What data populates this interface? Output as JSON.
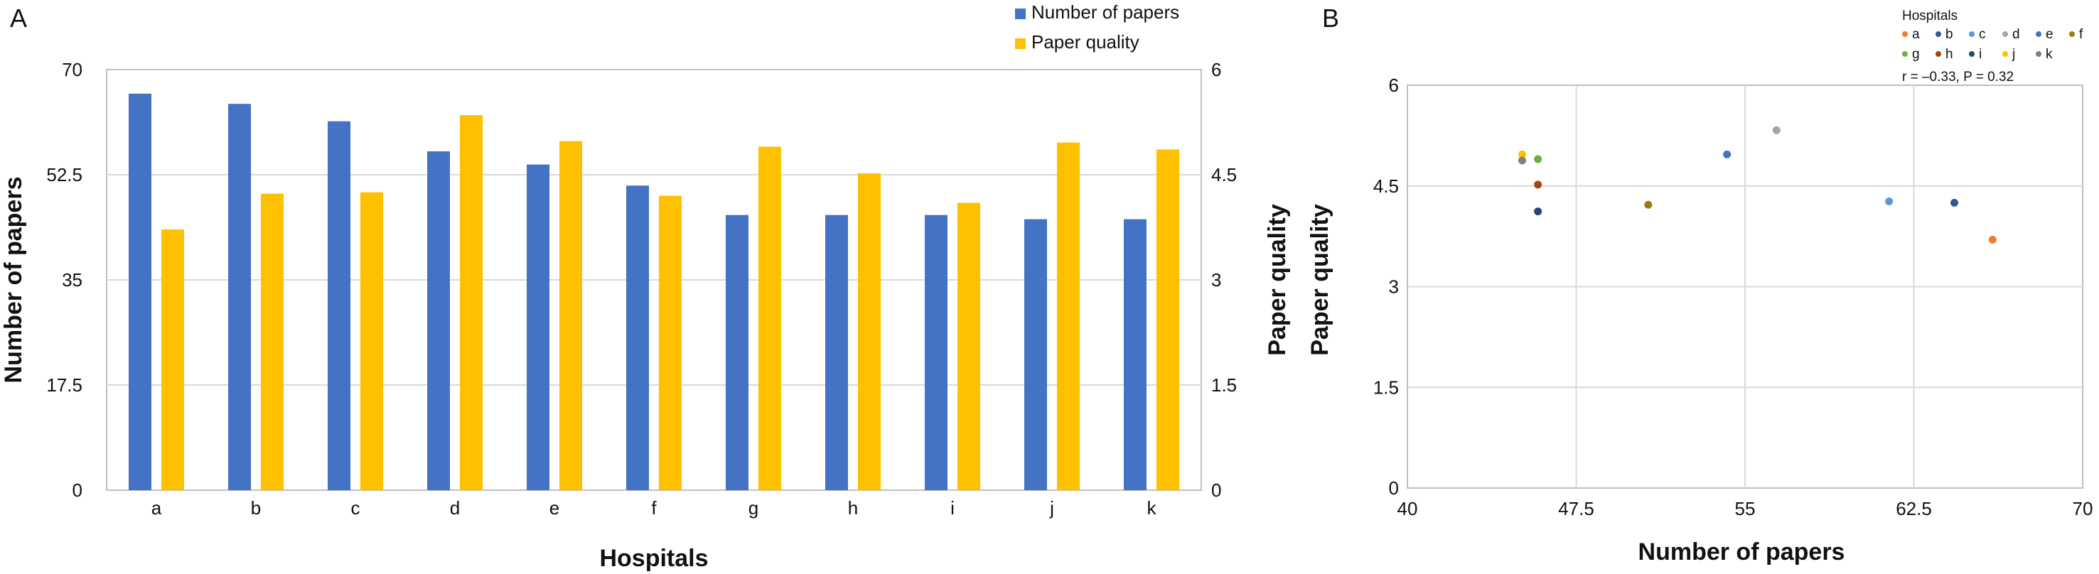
{
  "panels": [
    "A",
    "B"
  ],
  "chart_data": [
    {
      "type": "bar",
      "categories": [
        "a",
        "b",
        "c",
        "d",
        "e",
        "f",
        "g",
        "h",
        "i",
        "j",
        "k"
      ],
      "series": [
        {
          "name": "Number of papers",
          "axis": "left",
          "color": "#4472C4",
          "values": [
            66,
            64.3,
            61.4,
            56.4,
            54.2,
            50.7,
            45.8,
            45.8,
            45.8,
            45.1,
            45.1
          ]
        },
        {
          "name": "Paper quality",
          "axis": "right",
          "color": "#FFC000",
          "values": [
            3.72,
            4.23,
            4.25,
            5.35,
            4.98,
            4.2,
            4.9,
            4.52,
            4.1,
            4.96,
            4.86
          ]
        }
      ],
      "xlabel": "Hospitals",
      "ylabel": "Number of papers",
      "y2label": "Paper quality",
      "ylim": [
        0,
        70
      ],
      "y2lim": [
        0,
        6
      ],
      "yticks": [
        "0",
        "17.5",
        "35",
        "52.5",
        "70"
      ],
      "y2ticks": [
        "0",
        "1.5",
        "3",
        "4.5",
        "6"
      ],
      "grid": true,
      "legend": "top-right"
    },
    {
      "type": "scatter",
      "legend_title": "Hospitals",
      "points": [
        {
          "label": "a",
          "x": 66,
          "y": 3.7,
          "color": "#ED7D31"
        },
        {
          "label": "b",
          "x": 64.3,
          "y": 4.25,
          "color": "#2E5C8A"
        },
        {
          "label": "c",
          "x": 61.4,
          "y": 4.27,
          "color": "#5B9BD5"
        },
        {
          "label": "d",
          "x": 56.4,
          "y": 5.33,
          "color": "#A5A5A5"
        },
        {
          "label": "e",
          "x": 54.2,
          "y": 4.97,
          "color": "#4472C4"
        },
        {
          "label": "f",
          "x": 50.7,
          "y": 4.22,
          "color": "#9E7C0C"
        },
        {
          "label": "g",
          "x": 45.8,
          "y": 4.9,
          "color": "#70AD47"
        },
        {
          "label": "h",
          "x": 45.8,
          "y": 4.52,
          "color": "#9E480E"
        },
        {
          "label": "i",
          "x": 45.8,
          "y": 4.12,
          "color": "#264478"
        },
        {
          "label": "j",
          "x": 45.1,
          "y": 4.97,
          "color": "#FFC000"
        },
        {
          "label": "k",
          "x": 45.1,
          "y": 4.88,
          "color": "#7F7F7F"
        }
      ],
      "xlabel": "Number of papers",
      "ylabel": "Paper quality",
      "xlim": [
        40,
        70
      ],
      "ylim": [
        0,
        6
      ],
      "xticks": [
        "40",
        "47.5",
        "55",
        "62.5",
        "70"
      ],
      "yticks": [
        "0",
        "1.5",
        "3",
        "4.5",
        "6"
      ],
      "annotation": "r = –0.33, P = 0.32",
      "grid": true,
      "legend": "top-right"
    }
  ]
}
